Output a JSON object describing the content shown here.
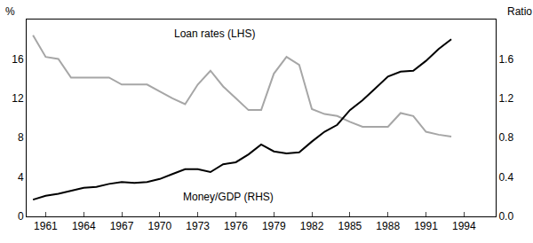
{
  "chart_data": {
    "type": "line",
    "ylabel": "%",
    "y2label": "Ratio",
    "x": [
      1960,
      1961,
      1962,
      1963,
      1964,
      1965,
      1966,
      1967,
      1968,
      1969,
      1970,
      1971,
      1972,
      1973,
      1974,
      1975,
      1976,
      1977,
      1978,
      1979,
      1980,
      1981,
      1982,
      1983,
      1984,
      1985,
      1986,
      1987,
      1988,
      1989,
      1990,
      1991,
      1992,
      1993
    ],
    "series": [
      {
        "name": "Loan rates (LHS)",
        "color": "#a6a6a6",
        "axis": "y",
        "values": [
          18.4,
          16.2,
          16.0,
          14.1,
          14.1,
          14.1,
          14.1,
          13.4,
          13.4,
          13.4,
          12.7,
          12.0,
          11.4,
          13.4,
          14.8,
          13.2,
          12.0,
          10.8,
          10.8,
          14.5,
          16.2,
          15.4,
          10.9,
          10.4,
          10.2,
          9.6,
          9.1,
          9.1,
          9.1,
          10.5,
          10.2,
          8.6,
          8.3,
          8.1
        ]
      },
      {
        "name": "Money/GDP (RHS)",
        "color": "#000000",
        "axis": "y2",
        "values": [
          0.17,
          0.21,
          0.23,
          0.26,
          0.29,
          0.3,
          0.33,
          0.35,
          0.34,
          0.35,
          0.38,
          0.43,
          0.48,
          0.48,
          0.45,
          0.53,
          0.55,
          0.63,
          0.73,
          0.66,
          0.64,
          0.65,
          0.76,
          0.86,
          0.93,
          1.08,
          1.18,
          1.3,
          1.42,
          1.47,
          1.48,
          1.58,
          1.7,
          1.8
        ]
      }
    ],
    "xlim": [
      1959.5,
      1996.5
    ],
    "xticks": [
      1961,
      1964,
      1967,
      1970,
      1973,
      1976,
      1979,
      1982,
      1985,
      1988,
      1991,
      1994
    ],
    "ylim": [
      0,
      20
    ],
    "yticks": [
      0,
      4,
      8,
      12,
      16
    ],
    "y2lim": [
      0,
      2
    ],
    "y2ticks": [
      {
        "value": 0,
        "label": "0.0"
      },
      {
        "value": 0.4,
        "label": "0.4"
      },
      {
        "value": 0.8,
        "label": "0.8"
      },
      {
        "value": 1.2,
        "label": "1.2"
      },
      {
        "value": 1.6,
        "label": "1.6"
      }
    ],
    "grid": false
  }
}
